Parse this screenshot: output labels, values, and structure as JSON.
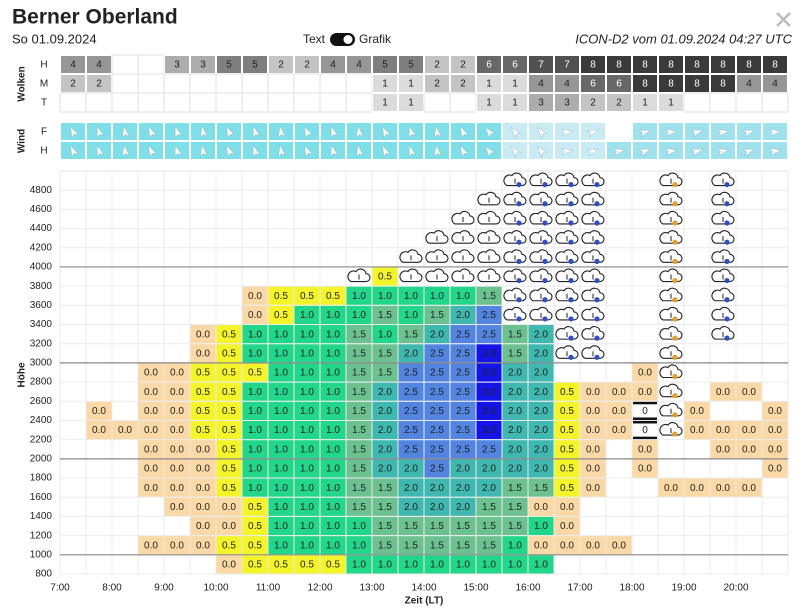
{
  "header": {
    "title": "Berner Oberland",
    "date": "So 01.09.2024",
    "toggle_left": "Text",
    "toggle_right": "Grafik",
    "model": "ICON-D2 vom 01.09.2024 04:27 UTC"
  },
  "clouds": {
    "label": "Wolken",
    "rows": [
      {
        "label": "H",
        "values": [
          4,
          4,
          null,
          null,
          3,
          3,
          5,
          5,
          2,
          2,
          4,
          4,
          5,
          5,
          2,
          2,
          6,
          6,
          7,
          7,
          8,
          8,
          8,
          8,
          8,
          8,
          8,
          8
        ]
      },
      {
        "label": "M",
        "values": [
          2,
          2,
          null,
          null,
          null,
          null,
          null,
          null,
          null,
          null,
          null,
          null,
          1,
          1,
          2,
          2,
          1,
          1,
          4,
          4,
          6,
          6,
          8,
          8,
          8,
          8,
          4,
          4
        ]
      },
      {
        "label": "T",
        "values": [
          null,
          null,
          null,
          null,
          null,
          null,
          null,
          null,
          null,
          null,
          null,
          null,
          1,
          1,
          null,
          null,
          1,
          1,
          3,
          3,
          2,
          2,
          1,
          1,
          null,
          null,
          null,
          null
        ]
      }
    ]
  },
  "wind": {
    "label": "Wind",
    "rows": [
      {
        "label": "F"
      },
      {
        "label": "H"
      }
    ]
  },
  "grid": {
    "y_label": "Höhe",
    "x_label": "Zeit (LT)",
    "y_labels": [
      "4800",
      "4600",
      "4400",
      "4200",
      "4000",
      "3800",
      "3600",
      "3400",
      "3200",
      "3000",
      "2800",
      "2600",
      "2400",
      "2200",
      "2000",
      "1800",
      "1600",
      "1400",
      "1200",
      "1000",
      "800"
    ],
    "x_labels": [
      "7:00",
      "8:00",
      "9:00",
      "10:00",
      "11:00",
      "12:00",
      "13:00",
      "14:00",
      "15:00",
      "16:00",
      "17:00",
      "18:00",
      "19:00",
      "20:00"
    ],
    "colors": {
      "0.0": "#fad9a6",
      "0.5": "#f4f42a",
      "1.0": "#22d68a",
      "1.5": "#6cc190",
      "2.0": "#3fb8b0",
      "2.5": "#5284e0",
      "3.0": "#1414e6",
      "0": "#ffffff"
    },
    "rows": [
      [
        null,
        null,
        null,
        null,
        null,
        null,
        null,
        null,
        null,
        null,
        null,
        null,
        null,
        null,
        null,
        null,
        null,
        null,
        null,
        null,
        null,
        null,
        null,
        null,
        null,
        null,
        null,
        null
      ],
      [
        null,
        null,
        null,
        null,
        null,
        null,
        null,
        null,
        null,
        null,
        null,
        null,
        null,
        null,
        null,
        null,
        null,
        null,
        null,
        null,
        null,
        null,
        null,
        null,
        null,
        null,
        null,
        null
      ],
      [
        null,
        null,
        null,
        null,
        null,
        null,
        null,
        null,
        null,
        null,
        null,
        null,
        null,
        null,
        null,
        null,
        null,
        null,
        null,
        null,
        null,
        null,
        null,
        null,
        null,
        null,
        null,
        null
      ],
      [
        null,
        null,
        null,
        null,
        null,
        null,
        null,
        null,
        null,
        null,
        null,
        null,
        null,
        null,
        null,
        null,
        null,
        null,
        null,
        null,
        null,
        null,
        null,
        null,
        null,
        null,
        null,
        null
      ],
      [
        null,
        null,
        null,
        null,
        null,
        null,
        null,
        null,
        null,
        null,
        null,
        null,
        null,
        null,
        null,
        null,
        null,
        null,
        null,
        null,
        null,
        null,
        null,
        null,
        null,
        null,
        null,
        null
      ],
      [
        null,
        null,
        null,
        null,
        null,
        null,
        null,
        null,
        null,
        null,
        null,
        null,
        "0.5",
        null,
        null,
        null,
        null,
        null,
        null,
        null,
        null,
        null,
        null,
        null,
        null,
        null,
        null,
        null
      ],
      [
        null,
        null,
        null,
        null,
        null,
        null,
        null,
        "0.0",
        "0.5",
        "0.5",
        "0.5",
        "1.0",
        "1.0",
        "1.0",
        "1.0",
        "1.0",
        "1.5",
        null,
        null,
        null,
        null,
        null,
        null,
        null,
        null,
        null,
        null,
        null
      ],
      [
        null,
        null,
        null,
        null,
        null,
        null,
        null,
        "0.0",
        "0.5",
        "1.0",
        "1.0",
        "1.0",
        "1.5",
        "1.0",
        "1.5",
        "2.0",
        "2.5",
        null,
        null,
        null,
        null,
        null,
        null,
        null,
        null,
        null,
        null,
        null
      ],
      [
        null,
        null,
        null,
        null,
        null,
        "0.0",
        "0.5",
        "1.0",
        "1.0",
        "1.0",
        "1.0",
        "1.5",
        "1.0",
        "1.5",
        "2.0",
        "2.5",
        "2.5",
        "1.5",
        "2.0",
        null,
        null,
        null,
        null,
        null,
        null,
        null,
        null,
        null
      ],
      [
        null,
        null,
        null,
        null,
        null,
        "0.0",
        "0.5",
        "1.0",
        "1.0",
        "1.0",
        "1.0",
        "1.5",
        "1.5",
        "2.0",
        "2.5",
        "2.5",
        "3.0",
        "1.5",
        "2.0",
        null,
        null,
        null,
        null,
        null,
        null,
        null,
        null,
        null
      ],
      [
        null,
        null,
        null,
        "0.0",
        "0.0",
        "0.5",
        "0.5",
        "0.5",
        "1.0",
        "1.0",
        "1.0",
        "1.5",
        "1.5",
        "2.5",
        "2.5",
        "2.5",
        "3.0",
        "2.0",
        "2.0",
        null,
        null,
        null,
        "0.0",
        null,
        null,
        null,
        null,
        null
      ],
      [
        null,
        null,
        null,
        "0.0",
        "0.0",
        "0.5",
        "0.5",
        "1.0",
        "1.0",
        "1.0",
        "1.0",
        "1.5",
        "2.0",
        "2.5",
        "2.5",
        "2.5",
        "3.0",
        "2.0",
        "2.0",
        "0.5",
        "0.0",
        "0.0",
        "0.0",
        null,
        null,
        "0.0",
        "0.0",
        null
      ],
      [
        null,
        "0.0",
        null,
        "0.0",
        "0.0",
        "0.5",
        "0.5",
        "1.0",
        "1.0",
        "1.0",
        "1.0",
        "1.5",
        "2.0",
        "2.5",
        "2.5",
        "2.5",
        "3.0",
        "2.0",
        "2.0",
        "0.5",
        "0.0",
        "0.0",
        "0",
        null,
        "0.0",
        null,
        null,
        "0.0"
      ],
      [
        null,
        "0.0",
        "0.0",
        "0.0",
        "0.0",
        "0.5",
        "0.5",
        "1.0",
        "1.0",
        "1.0",
        "1.0",
        "1.5",
        "2.0",
        "2.5",
        "2.5",
        "2.5",
        "3.0",
        "2.0",
        "2.0",
        "0.5",
        "0.0",
        "0.0",
        "0",
        null,
        "0.0",
        "0.0",
        "0.0",
        "0.0"
      ],
      [
        null,
        null,
        null,
        "0.0",
        "0.0",
        "0.0",
        "0.5",
        "1.0",
        "1.0",
        "1.0",
        "1.0",
        "1.5",
        "2.0",
        "2.5",
        "2.5",
        "2.5",
        "2.5",
        "2.0",
        "2.0",
        "0.5",
        "0.0",
        null,
        "0.0",
        null,
        null,
        "0.0",
        "0.0",
        "0.0"
      ],
      [
        null,
        null,
        null,
        "0.0",
        "0.0",
        "0.0",
        "0.5",
        "1.0",
        "1.0",
        "1.0",
        "1.0",
        "1.5",
        "2.0",
        "2.0",
        "2.5",
        "2.0",
        "2.0",
        "2.0",
        "2.0",
        "0.5",
        "0.0",
        null,
        "0.0",
        null,
        null,
        null,
        null,
        "0.0"
      ],
      [
        null,
        null,
        null,
        "0.0",
        "0.0",
        "0.0",
        "0.5",
        "1.0",
        "1.0",
        "1.0",
        "1.0",
        "1.5",
        "1.5",
        "2.0",
        "2.0",
        "2.0",
        "2.0",
        "1.5",
        "1.5",
        "0.5",
        "0.0",
        null,
        null,
        "0.0",
        "0.0",
        "0.0",
        "0.0",
        null
      ],
      [
        null,
        null,
        null,
        null,
        "0.0",
        "0.0",
        "0.0",
        "0.5",
        "1.0",
        "1.0",
        "1.0",
        "1.5",
        "1.5",
        "2.0",
        "2.0",
        "2.0",
        "1.5",
        "1.5",
        "0.0",
        "0.0",
        null,
        null,
        null,
        null,
        null,
        null,
        null,
        null
      ],
      [
        null,
        null,
        null,
        null,
        null,
        "0.0",
        "0.0",
        "0.5",
        "1.0",
        "1.0",
        "1.0",
        "1.0",
        "1.5",
        "1.5",
        "1.5",
        "1.5",
        "1.5",
        "1.5",
        "1.0",
        "0.0",
        null,
        null,
        null,
        null,
        null,
        null,
        null,
        null
      ],
      [
        null,
        null,
        null,
        "0.0",
        "0.0",
        "0.0",
        "0.5",
        "0.5",
        "1.0",
        "1.0",
        "1.0",
        "1.0",
        "1.5",
        "1.5",
        "1.5",
        "1.5",
        "1.5",
        "1.0",
        "0.0",
        "0.0",
        "0.0",
        "0.0",
        null,
        null,
        null,
        null,
        null,
        null
      ],
      [
        null,
        null,
        null,
        null,
        null,
        null,
        "0.0",
        "0.5",
        "0.5",
        "0.5",
        "0.5",
        "1.0",
        "1.0",
        "1.0",
        "1.0",
        "1.0",
        "1.0",
        "1.0",
        "1.0",
        null,
        null,
        null,
        null,
        null,
        null,
        null,
        null,
        null
      ]
    ]
  }
}
